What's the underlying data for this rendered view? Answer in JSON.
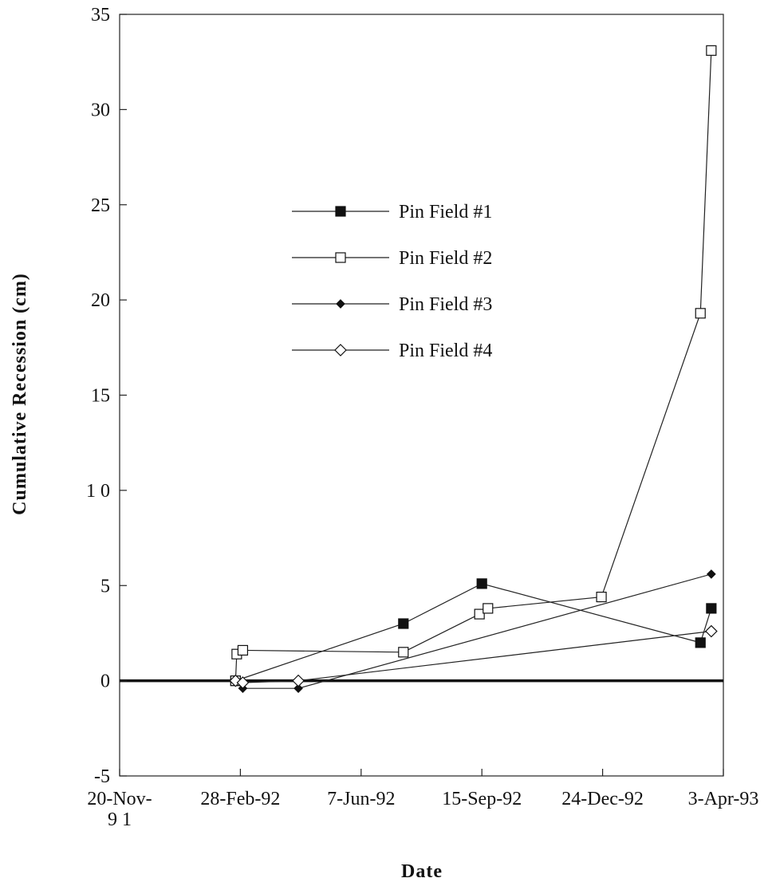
{
  "chart_data": {
    "type": "line",
    "title": "",
    "xlabel": "Date",
    "ylabel": "Cumulative Recession (cm)",
    "xlim": [
      "1991-11-20",
      "1993-04-03"
    ],
    "ylim": [
      -5,
      35
    ],
    "y_ticks": [
      -5,
      0,
      5,
      10,
      15,
      20,
      25,
      30,
      35
    ],
    "y_tick_labels": [
      "-5",
      "0",
      "5",
      "1 0",
      "15",
      "20",
      "25",
      "30",
      "35"
    ],
    "x_ticks": [
      "1991-11-20",
      "1992-02-28",
      "1992-06-07",
      "1992-09-15",
      "1992-12-24",
      "1993-04-03"
    ],
    "x_tick_labels": [
      [
        "20-Nov-",
        "9 1"
      ],
      [
        "28-Feb-92"
      ],
      [
        "7-Jun-92"
      ],
      [
        "15-Sep-92"
      ],
      [
        "24-Dec-92"
      ],
      [
        "3-Apr-93"
      ]
    ],
    "grid": false,
    "legend_position": "upper-center",
    "zero_line": true,
    "series": [
      {
        "name": "Pin Field #1",
        "marker": "filled-square",
        "x": [
          "1992-02-24",
          "1992-07-12",
          "1992-09-15",
          "1993-03-15",
          "1993-03-24"
        ],
        "y": [
          0.0,
          3.0,
          5.1,
          2.0,
          3.8
        ]
      },
      {
        "name": "Pin Field #2",
        "marker": "open-square",
        "x": [
          "1992-02-24",
          "1992-02-25",
          "1992-03-01",
          "1992-07-12",
          "1992-09-13",
          "1992-09-20",
          "1992-12-23",
          "1993-03-15",
          "1993-03-24"
        ],
        "y": [
          0.0,
          1.4,
          1.6,
          1.5,
          3.5,
          3.8,
          4.4,
          19.3,
          33.1
        ]
      },
      {
        "name": "Pin Field #3",
        "marker": "filled-diamond",
        "x": [
          "1992-02-24",
          "1992-03-01",
          "1992-04-16",
          "1993-03-24"
        ],
        "y": [
          0.0,
          -0.4,
          -0.4,
          5.6
        ]
      },
      {
        "name": "Pin Field #4",
        "marker": "open-diamond",
        "x": [
          "1992-02-24",
          "1992-03-01",
          "1992-04-16",
          "1993-03-24"
        ],
        "y": [
          0.0,
          -0.1,
          0.0,
          2.6
        ]
      }
    ]
  }
}
